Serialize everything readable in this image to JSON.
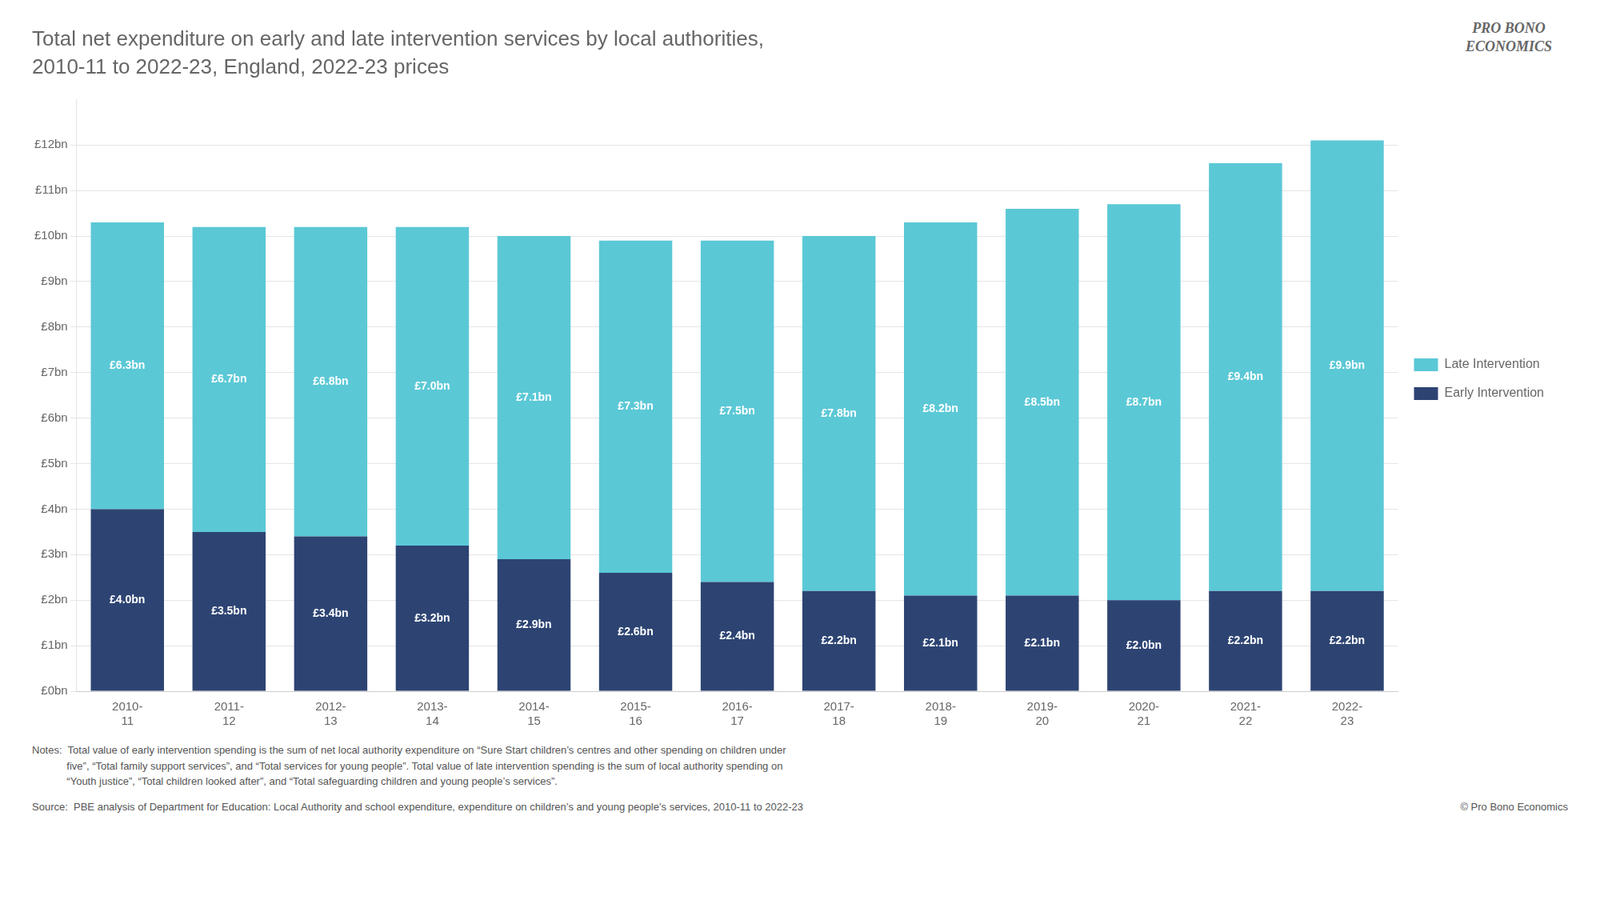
{
  "chart_data": {
    "type": "bar",
    "title": "Total net expenditure on early and late intervention services by local authorities,",
    "subtitle": "2010-11 to 2022-23, England, 2022-23 prices",
    "categories": [
      "2010-\n11",
      "2011-\n12",
      "2012-\n13",
      "2013-\n14",
      "2014-\n15",
      "2015-\n16",
      "2016-\n17",
      "2017-\n18",
      "2018-\n19",
      "2019-\n20",
      "2020-\n21",
      "2021-\n22",
      "2022-\n23"
    ],
    "series": [
      {
        "name": "Early Intervention",
        "color": "#2d4473",
        "values": [
          4.0,
          3.5,
          3.4,
          3.2,
          2.9,
          2.6,
          2.4,
          2.2,
          2.1,
          2.1,
          2.0,
          2.2,
          2.2
        ],
        "value_labels": [
          "£4.0bn",
          "£3.5bn",
          "£3.4bn",
          "£3.2bn",
          "£2.9bn",
          "£2.6bn",
          "£2.4bn",
          "£2.2bn",
          "£2.1bn",
          "£2.1bn",
          "£2.0bn",
          "£2.2bn",
          "£2.2bn"
        ]
      },
      {
        "name": "Late Intervention",
        "color": "#5bc8d6",
        "values": [
          6.3,
          6.7,
          6.8,
          7.0,
          7.1,
          7.3,
          7.5,
          7.8,
          8.2,
          8.5,
          8.7,
          9.4,
          9.9
        ],
        "value_labels": [
          "£6.3bn",
          "£6.7bn",
          "£6.8bn",
          "£7.0bn",
          "£7.1bn",
          "£7.3bn",
          "£7.5bn",
          "£7.8bn",
          "£8.2bn",
          "£8.5bn",
          "£8.7bn",
          "£9.4bn",
          "£9.9bn"
        ]
      }
    ],
    "ylim": [
      0,
      13
    ],
    "yticks": [
      {
        "value": 0,
        "label": "£0bn"
      },
      {
        "value": 1,
        "label": "£1bn"
      },
      {
        "value": 2,
        "label": "£2bn"
      },
      {
        "value": 3,
        "label": "£3bn"
      },
      {
        "value": 4,
        "label": "£4bn"
      },
      {
        "value": 5,
        "label": "£5bn"
      },
      {
        "value": 6,
        "label": "£6bn"
      },
      {
        "value": 7,
        "label": "£7bn"
      },
      {
        "value": 8,
        "label": "£8bn"
      },
      {
        "value": 9,
        "label": "£9bn"
      },
      {
        "value": 10,
        "label": "£10bn"
      },
      {
        "value": 11,
        "label": "£11bn"
      },
      {
        "value": 12,
        "label": "£12bn"
      }
    ],
    "stacked": true,
    "grid": true,
    "legend": "right",
    "data_labels": true,
    "annotations": [
      "PRO BONO\nECONOMICS",
      "Notes:  Total value of early intervention spending is the sum of net local authority expenditure on “Sure Start children’s centres and other spending on children under\n            five”, “Total family support services”, and “Total services for young people”. Total value of late intervention spending is the sum of local authority spending on\n            “Youth justice”, “Total children looked after”, and “Total safeguarding children and young people’s services”.",
      "Source:  PBE analysis of Department for Education: Local Authority and school expenditure, expenditure on children’s and young people’s services, 2010-11 to 2022-23",
      "© Pro Bono Economics"
    ]
  }
}
